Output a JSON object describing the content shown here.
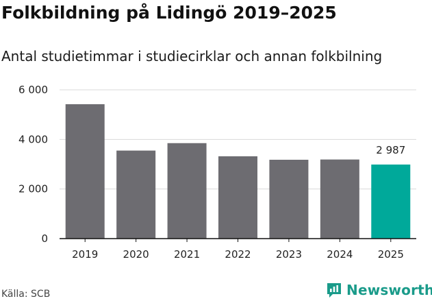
{
  "title": "Folkbildning på Lidingö 2019–2025",
  "subtitle": "Antal studietimmar i studiecirklar och annan folkbilning",
  "source": "Källa: SCB",
  "brand": {
    "name": "Newsworthy",
    "icon": "newsworthy-logo-icon"
  },
  "colors": {
    "bar": "#6d6c71",
    "highlight": "#00a99a",
    "grid": "#d9d9d9",
    "axis": "#111111"
  },
  "chart_data": {
    "type": "bar",
    "title": "Folkbildning på Lidingö 2019–2025",
    "subtitle": "Antal studietimmar i studiecirklar och annan folkbilning",
    "xlabel": "",
    "ylabel": "",
    "categories": [
      "2019",
      "2020",
      "2021",
      "2022",
      "2023",
      "2024",
      "2025"
    ],
    "values": [
      5420,
      3550,
      3850,
      3320,
      3180,
      3190,
      2987
    ],
    "ylim": [
      0,
      6000
    ],
    "yticks": [
      0,
      2000,
      4000,
      6000
    ],
    "ytick_labels": [
      "0",
      "2 000",
      "4 000",
      "6 000"
    ],
    "highlight_index": 6,
    "highlight_label": "2 987",
    "grid": true
  }
}
